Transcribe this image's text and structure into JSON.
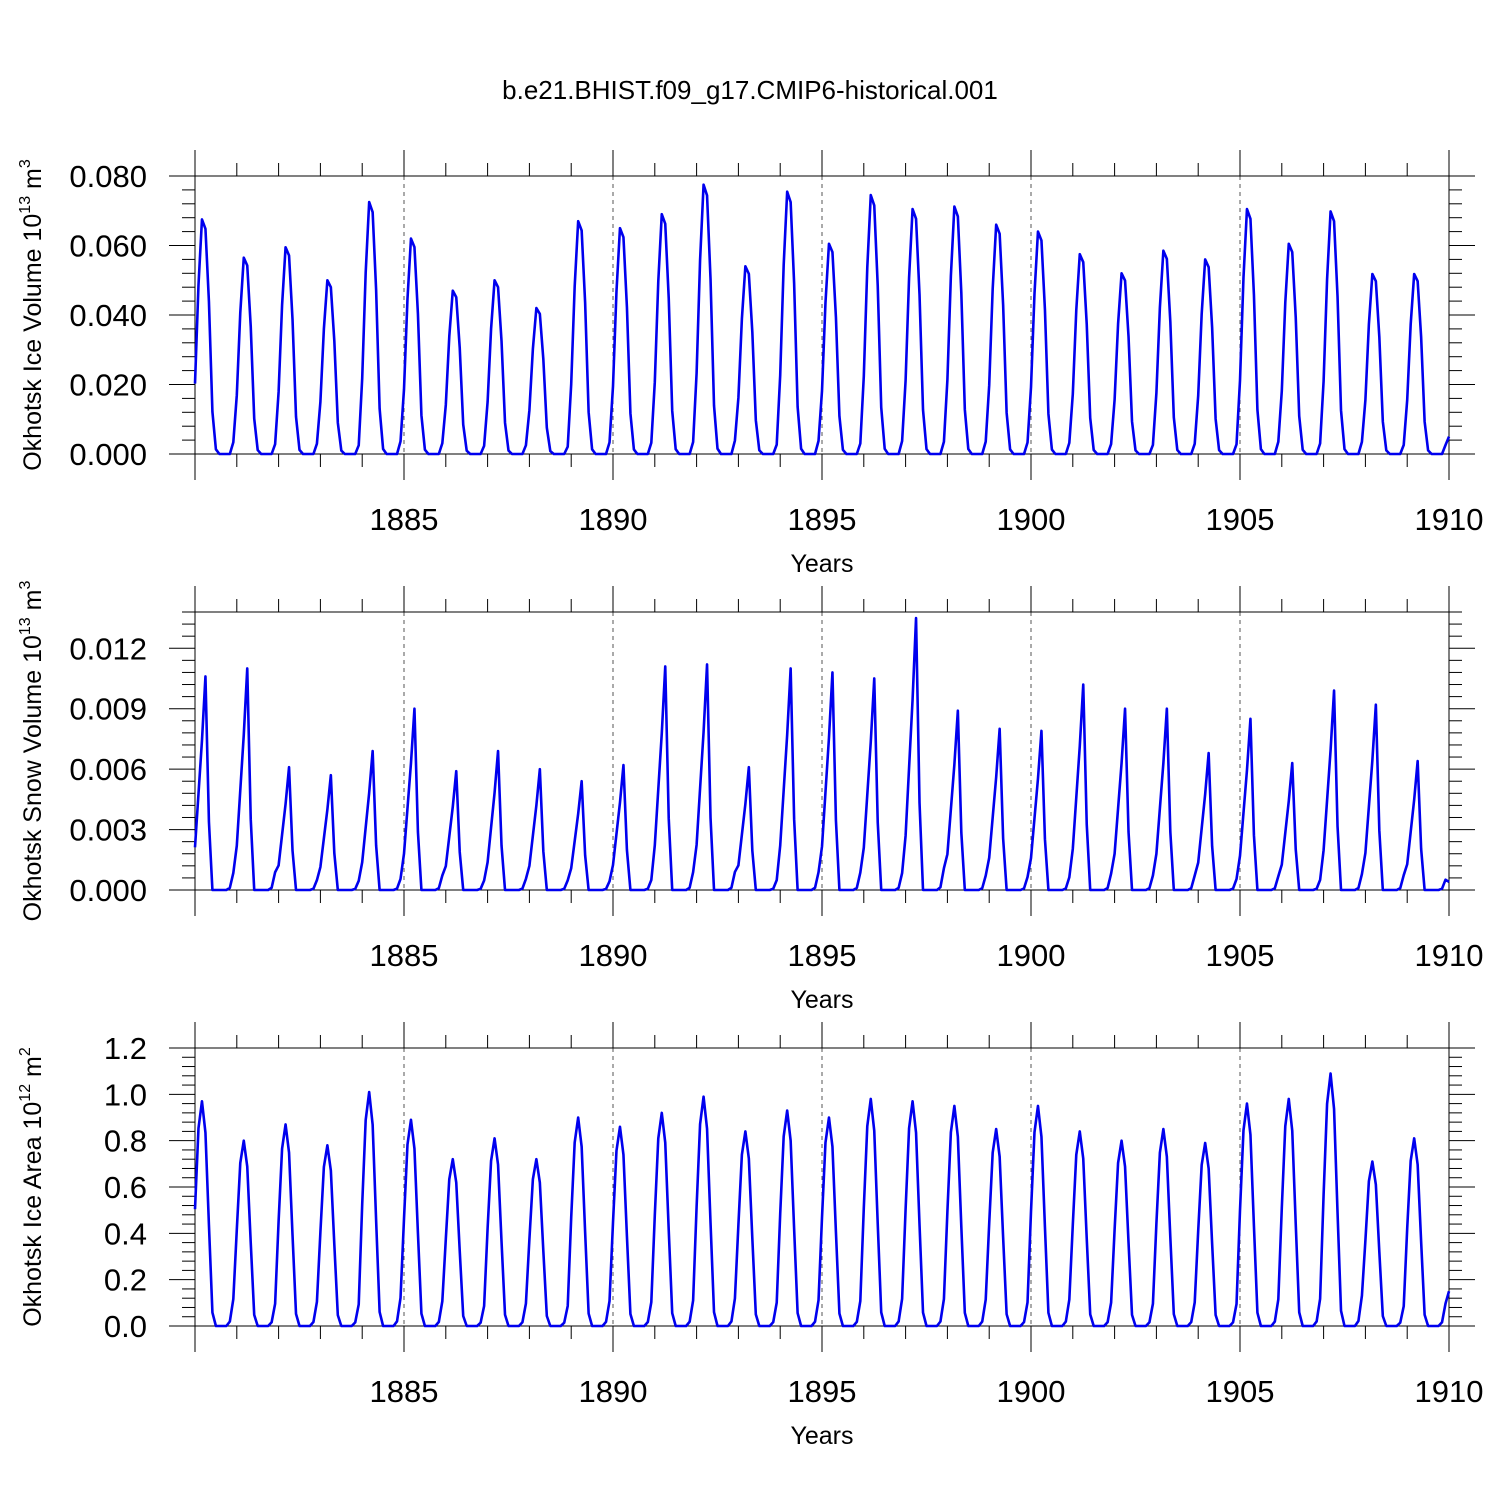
{
  "title": "b.e21.BHIST.f09_g17.CMIP6-historical.001",
  "chart_data": [
    {
      "type": "line",
      "xlabel": "Years",
      "ylabel": {
        "main": "Okhotsk Ice Volume 10",
        "exp": "13",
        "unit": " m",
        "unit_exp": "3"
      },
      "xlim": [
        1880,
        1910
      ],
      "ylim": [
        0,
        0.08
      ],
      "xticks": [
        1885,
        1890,
        1895,
        1900,
        1905,
        1910
      ],
      "xtick_labels": [
        "1885",
        "1890",
        "1895",
        "1900",
        "1905",
        "1910"
      ],
      "yticks": [
        0,
        0.02,
        0.04,
        0.06,
        0.08
      ],
      "ytick_labels": [
        "0.000",
        "0.020",
        "0.040",
        "0.060",
        "0.080"
      ],
      "dashed_verticals": [
        1885,
        1890,
        1895,
        1900,
        1905
      ],
      "series": [
        {
          "name": "Okhotsk Ice Volume",
          "color": "#0000ee",
          "x0": 1880,
          "step": 0.0833333,
          "peaks": [
            0.0675,
            0.0565,
            0.0595,
            0.05,
            0.0725,
            0.062,
            0.047,
            0.05,
            0.042,
            0.067,
            0.065,
            0.069,
            0.0775,
            0.054,
            0.0755,
            0.0605,
            0.0745,
            0.0705,
            0.0712,
            0.066,
            0.064,
            0.0575,
            0.052,
            0.0585,
            0.056,
            0.0705,
            0.0605,
            0.0698,
            0.0518,
            0.0518
          ],
          "profile": [
            0.3,
            0.72,
            1.0,
            0.96,
            0.65,
            0.18,
            0.02,
            0.0,
            0.0,
            0.0,
            0.0,
            0.05
          ],
          "end_value": 0.005
        }
      ]
    },
    {
      "type": "line",
      "xlabel": "Years",
      "ylabel": {
        "main": "Okhotsk Snow Volume 10",
        "exp": "13",
        "unit": " m",
        "unit_exp": "3"
      },
      "xlim": [
        1880,
        1910
      ],
      "ylim": [
        0,
        0.0138
      ],
      "xticks": [
        1885,
        1890,
        1895,
        1900,
        1905,
        1910
      ],
      "xtick_labels": [
        "1885",
        "1890",
        "1895",
        "1900",
        "1905",
        "1910"
      ],
      "yticks": [
        0,
        0.003,
        0.006,
        0.009,
        0.012
      ],
      "ytick_labels": [
        "0.000",
        "0.003",
        "0.006",
        "0.009",
        "0.012"
      ],
      "dashed_verticals": [
        1885,
        1890,
        1895,
        1900,
        1905
      ],
      "series": [
        {
          "name": "Okhotsk Snow Volume",
          "color": "#0000ee",
          "x0": 1880,
          "step": 0.0833333,
          "peaks": [
            0.0106,
            0.011,
            0.0061,
            0.0057,
            0.0069,
            0.009,
            0.0059,
            0.0069,
            0.006,
            0.0054,
            0.0062,
            0.0111,
            0.0112,
            0.0061,
            0.011,
            0.0108,
            0.0105,
            0.0135,
            0.0089,
            0.008,
            0.0079,
            0.0102,
            0.009,
            0.009,
            0.0068,
            0.0085,
            0.0063,
            0.0099,
            0.0092,
            0.0064
          ],
          "profile": [
            0.2,
            0.45,
            0.7,
            1.0,
            0.32,
            0.0,
            0.0,
            0.0,
            0.0,
            0.0,
            0.01,
            0.08
          ],
          "end_value": 0.0004
        }
      ]
    },
    {
      "type": "line",
      "xlabel": "Years",
      "ylabel": {
        "main": "Okhotsk Ice Area 10",
        "exp": "12",
        "unit": " m",
        "unit_exp": "2"
      },
      "xlim": [
        1880,
        1910
      ],
      "ylim": [
        0,
        1.2
      ],
      "xticks": [
        1885,
        1890,
        1895,
        1900,
        1905,
        1910
      ],
      "xtick_labels": [
        "1885",
        "1890",
        "1895",
        "1900",
        "1905",
        "1910"
      ],
      "yticks": [
        0,
        0.2,
        0.4,
        0.6,
        0.8,
        1.0,
        1.2
      ],
      "ytick_labels": [
        "0.0",
        "0.2",
        "0.4",
        "0.6",
        "0.8",
        "1.0",
        "1.2"
      ],
      "dashed_verticals": [
        1885,
        1890,
        1895,
        1900,
        1905
      ],
      "series": [
        {
          "name": "Okhotsk Ice Area",
          "color": "#0000ee",
          "x0": 1880,
          "step": 0.0833333,
          "peaks": [
            0.97,
            0.8,
            0.87,
            0.78,
            1.01,
            0.89,
            0.72,
            0.81,
            0.72,
            0.9,
            0.86,
            0.92,
            0.99,
            0.84,
            0.93,
            0.9,
            0.98,
            0.97,
            0.95,
            0.85,
            0.95,
            0.84,
            0.8,
            0.85,
            0.79,
            0.96,
            0.98,
            1.09,
            0.71,
            0.81
          ],
          "profile": [
            0.52,
            0.88,
            1.0,
            0.86,
            0.45,
            0.06,
            0.0,
            0.0,
            0.0,
            0.0,
            0.02,
            0.12
          ],
          "end_value": 0.15
        }
      ]
    }
  ]
}
